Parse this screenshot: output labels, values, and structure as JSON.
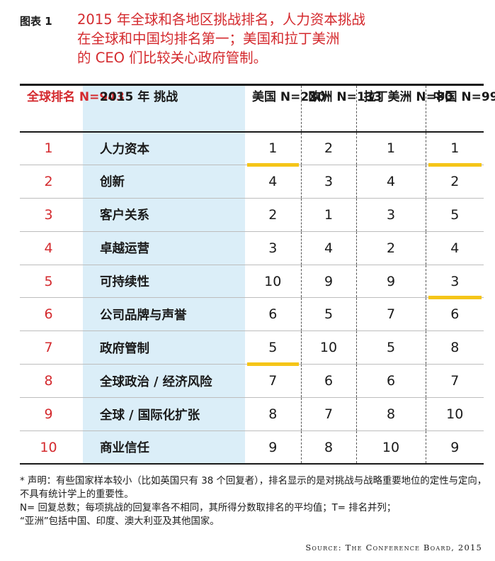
{
  "figure": {
    "label": "图表 1",
    "title_lines": [
      "2015 年全球和各地区挑战排名，人力资本挑战",
      "在全球和中国均排名第一；美国和拉丁美洲",
      "的 CEO 们比较关心政府管制。"
    ]
  },
  "table": {
    "headers": {
      "global_rank": "全球排名",
      "global_n": "N=943",
      "challenge_year": "2015 年",
      "challenge": "挑战",
      "us": "美国",
      "us_n": "N=230",
      "europe": "欧洲",
      "europe_n": "N=133",
      "latam": "拉丁美洲",
      "latam_n": "N=80",
      "china": "中国",
      "china_n": "N=99"
    },
    "rows": [
      {
        "rank": "1",
        "challenge": "人力资本",
        "us": "1",
        "europe": "2",
        "latam": "1",
        "china": "1"
      },
      {
        "rank": "2",
        "challenge": "创新",
        "us": "4",
        "europe": "3",
        "latam": "4",
        "china": "2"
      },
      {
        "rank": "3",
        "challenge": "客户关系",
        "us": "2",
        "europe": "1",
        "latam": "3",
        "china": "5"
      },
      {
        "rank": "4",
        "challenge": "卓越运营",
        "us": "3",
        "europe": "4",
        "latam": "2",
        "china": "4"
      },
      {
        "rank": "5",
        "challenge": "可持续性",
        "us": "10",
        "europe": "9",
        "latam": "9",
        "china": "3"
      },
      {
        "rank": "6",
        "challenge": "公司品牌与声誉",
        "us": "6",
        "europe": "5",
        "latam": "7",
        "china": "6"
      },
      {
        "rank": "7",
        "challenge": "政府管制",
        "us": "5",
        "europe": "10",
        "latam": "5",
        "china": "8"
      },
      {
        "rank": "8",
        "challenge": "全球政治 / 经济风险",
        "us": "7",
        "europe": "6",
        "latam": "6",
        "china": "7"
      },
      {
        "rank": "9",
        "challenge": "全球 / 国际化扩张",
        "us": "8",
        "europe": "7",
        "latam": "8",
        "china": "10"
      },
      {
        "rank": "10",
        "challenge": "商业信任",
        "us": "9",
        "europe": "8",
        "latam": "10",
        "china": "9"
      }
    ],
    "highlight_color": "#f5c518",
    "rank_color": "#d42a2e",
    "challenge_column_bg": "#dbeef8"
  },
  "notes": [
    "*  声明：有些国家样本较小（比如英国只有 38 个回复者），排名显示的是对挑战与战略重要地位的定性与定向，不具有统计学上的重要性。",
    "N= 回复总数；每项挑战的回复率各不相同，其所得分数取排名的平均值；T= 排名并列；",
    "“亚洲”包括中国、印度、澳大利亚及其他国家。"
  ],
  "source": "Source: The Conference Board, 2015"
}
